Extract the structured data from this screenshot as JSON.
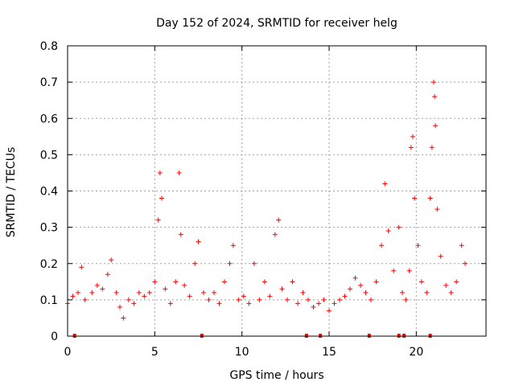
{
  "chart_data": {
    "type": "scatter",
    "title": "Day 152 of 2024, SRMTID for receiver helg",
    "xlabel": "GPS time / hours",
    "ylabel": "SRMTID / TECUs",
    "xlim": [
      0,
      24
    ],
    "ylim": [
      0,
      0.8
    ],
    "x_ticks": [
      0,
      5,
      10,
      15,
      20
    ],
    "x_tick_labels": [
      "0",
      "5",
      "10",
      "15",
      "20"
    ],
    "y_ticks": [
      0,
      0.1,
      0.2,
      0.3,
      0.4,
      0.5,
      0.6,
      0.7,
      0.8
    ],
    "y_tick_labels": [
      "0",
      "0.1",
      "0.2",
      "0.3",
      "0.4",
      "0.5",
      "0.6",
      "0.7",
      "0.8"
    ],
    "grid": true,
    "marker": "+",
    "series_color": "#ff0000",
    "series": [
      {
        "name": "SRMTID",
        "points": [
          [
            0.0,
            0.09
          ],
          [
            0.3,
            0.11
          ],
          [
            0.6,
            0.12
          ],
          [
            0.8,
            0.19
          ],
          [
            1.0,
            0.1
          ],
          [
            1.4,
            0.12
          ],
          [
            1.7,
            0.14
          ],
          [
            2.0,
            0.13
          ],
          [
            2.3,
            0.17
          ],
          [
            2.5,
            0.21
          ],
          [
            2.8,
            0.12
          ],
          [
            3.0,
            0.08
          ],
          [
            3.2,
            0.05
          ],
          [
            3.5,
            0.1
          ],
          [
            3.8,
            0.09
          ],
          [
            4.1,
            0.12
          ],
          [
            4.4,
            0.11
          ],
          [
            4.7,
            0.12
          ],
          [
            5.0,
            0.15
          ],
          [
            5.2,
            0.32
          ],
          [
            5.3,
            0.45
          ],
          [
            5.4,
            0.38
          ],
          [
            5.6,
            0.13
          ],
          [
            5.9,
            0.09
          ],
          [
            6.2,
            0.15
          ],
          [
            6.4,
            0.45
          ],
          [
            6.5,
            0.28
          ],
          [
            6.7,
            0.14
          ],
          [
            7.0,
            0.11
          ],
          [
            7.3,
            0.2
          ],
          [
            7.5,
            0.26
          ],
          [
            7.8,
            0.12
          ],
          [
            8.1,
            0.1
          ],
          [
            8.4,
            0.12
          ],
          [
            8.7,
            0.09
          ],
          [
            9.0,
            0.15
          ],
          [
            9.3,
            0.2
          ],
          [
            9.5,
            0.25
          ],
          [
            9.8,
            0.1
          ],
          [
            10.1,
            0.11
          ],
          [
            10.4,
            0.09
          ],
          [
            10.7,
            0.2
          ],
          [
            11.0,
            0.1
          ],
          [
            11.3,
            0.15
          ],
          [
            11.6,
            0.11
          ],
          [
            11.9,
            0.28
          ],
          [
            12.1,
            0.32
          ],
          [
            12.3,
            0.13
          ],
          [
            12.6,
            0.1
          ],
          [
            12.9,
            0.15
          ],
          [
            13.2,
            0.09
          ],
          [
            13.5,
            0.12
          ],
          [
            13.8,
            0.1
          ],
          [
            14.1,
            0.08
          ],
          [
            14.4,
            0.09
          ],
          [
            14.7,
            0.1
          ],
          [
            15.0,
            0.07
          ],
          [
            15.3,
            0.09
          ],
          [
            15.6,
            0.1
          ],
          [
            15.9,
            0.11
          ],
          [
            16.2,
            0.13
          ],
          [
            16.5,
            0.16
          ],
          [
            16.8,
            0.14
          ],
          [
            17.1,
            0.12
          ],
          [
            17.4,
            0.1
          ],
          [
            17.7,
            0.15
          ],
          [
            18.0,
            0.25
          ],
          [
            18.2,
            0.42
          ],
          [
            18.4,
            0.29
          ],
          [
            18.7,
            0.18
          ],
          [
            19.0,
            0.3
          ],
          [
            19.2,
            0.12
          ],
          [
            19.4,
            0.1
          ],
          [
            19.6,
            0.18
          ],
          [
            19.7,
            0.52
          ],
          [
            19.8,
            0.55
          ],
          [
            19.9,
            0.38
          ],
          [
            20.1,
            0.25
          ],
          [
            20.3,
            0.15
          ],
          [
            20.6,
            0.12
          ],
          [
            20.8,
            0.38
          ],
          [
            20.9,
            0.52
          ],
          [
            21.0,
            0.7
          ],
          [
            21.05,
            0.66
          ],
          [
            21.1,
            0.58
          ],
          [
            21.2,
            0.35
          ],
          [
            21.4,
            0.22
          ],
          [
            21.7,
            0.14
          ],
          [
            22.0,
            0.12
          ],
          [
            22.3,
            0.15
          ],
          [
            22.6,
            0.25
          ],
          [
            22.8,
            0.2
          ]
        ]
      }
    ],
    "markers_on_axis_x": [
      0.4,
      7.7,
      13.7,
      14.5,
      17.3,
      19.0,
      19.3,
      20.8
    ]
  }
}
